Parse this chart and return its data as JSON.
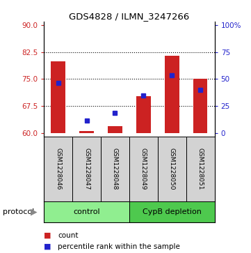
{
  "title": "GDS4828 / ILMN_3247266",
  "samples": [
    "GSM1228046",
    "GSM1228047",
    "GSM1228048",
    "GSM1228049",
    "GSM1228050",
    "GSM1228051"
  ],
  "count_values": [
    80.0,
    60.5,
    62.0,
    70.3,
    81.5,
    75.0
  ],
  "percentile_values": [
    74.0,
    63.5,
    65.5,
    70.5,
    76.0,
    72.0
  ],
  "baseline": 60,
  "ylim_left": [
    59.0,
    91.0
  ],
  "yticks_left": [
    60,
    67.5,
    75,
    82.5,
    90
  ],
  "yticks_right_labels": [
    "0",
    "25",
    "50",
    "75",
    "100%"
  ],
  "yticks_right_vals": [
    60,
    67.5,
    75,
    82.5,
    90
  ],
  "dotted_lines": [
    67.5,
    75,
    82.5
  ],
  "bar_color": "#cc2222",
  "blue_color": "#2222cc",
  "sample_box_color": "#d3d3d3",
  "control_color": "#90ee90",
  "depletion_color": "#4ec94e",
  "control_label": "control",
  "depletion_label": "CypB depletion",
  "protocol_label": "protocol",
  "legend_count": "count",
  "legend_pct": "percentile rank within the sample",
  "bar_width": 0.5,
  "blue_marker_size": 5
}
